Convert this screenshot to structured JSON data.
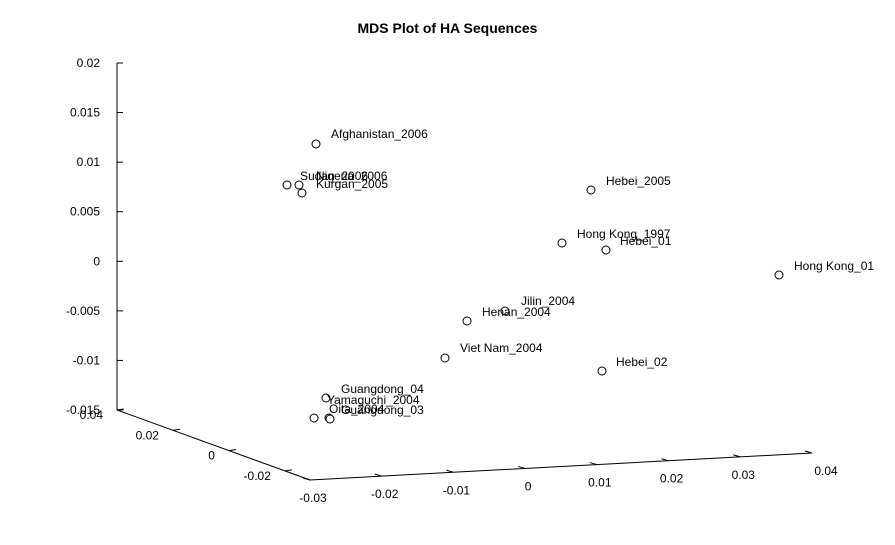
{
  "chart_data": {
    "type": "scatter",
    "title": "MDS Plot of HA Sequences",
    "xlabel": "",
    "ylabel": "",
    "zlabel": "",
    "view": "3d",
    "grid": false,
    "axes": {
      "x": {
        "ticks": [
          "-0.03",
          "-0.02",
          "-0.01",
          "0",
          "0.01",
          "0.02",
          "0.03",
          "0.04"
        ]
      },
      "y": {
        "ticks": [
          "-0.02",
          "0",
          "0.02",
          "0.04"
        ]
      },
      "z": {
        "ticks": [
          "-0.015",
          "-0.01",
          "-0.005",
          "0",
          "0.005",
          "0.01",
          "0.015",
          "0.02"
        ]
      }
    },
    "points": [
      {
        "label": "Afghanistan_2006"
      },
      {
        "label": "Sudan_2006"
      },
      {
        "label": "Nigeria_2006"
      },
      {
        "label": "Kurgan_2005"
      },
      {
        "label": "Hebei_2005"
      },
      {
        "label": "Hong Kong_1997"
      },
      {
        "label": "Hebei_01"
      },
      {
        "label": "Hong Kong_01"
      },
      {
        "label": "Jilin_2004"
      },
      {
        "label": "Henan_2004"
      },
      {
        "label": "Viet Nam_2004"
      },
      {
        "label": "Hebei_02"
      },
      {
        "label": "Guangdong_04"
      },
      {
        "label": "Yamaguchi_2004"
      },
      {
        "label": "Oita_2004"
      },
      {
        "label": "Guangdong_03"
      }
    ]
  }
}
